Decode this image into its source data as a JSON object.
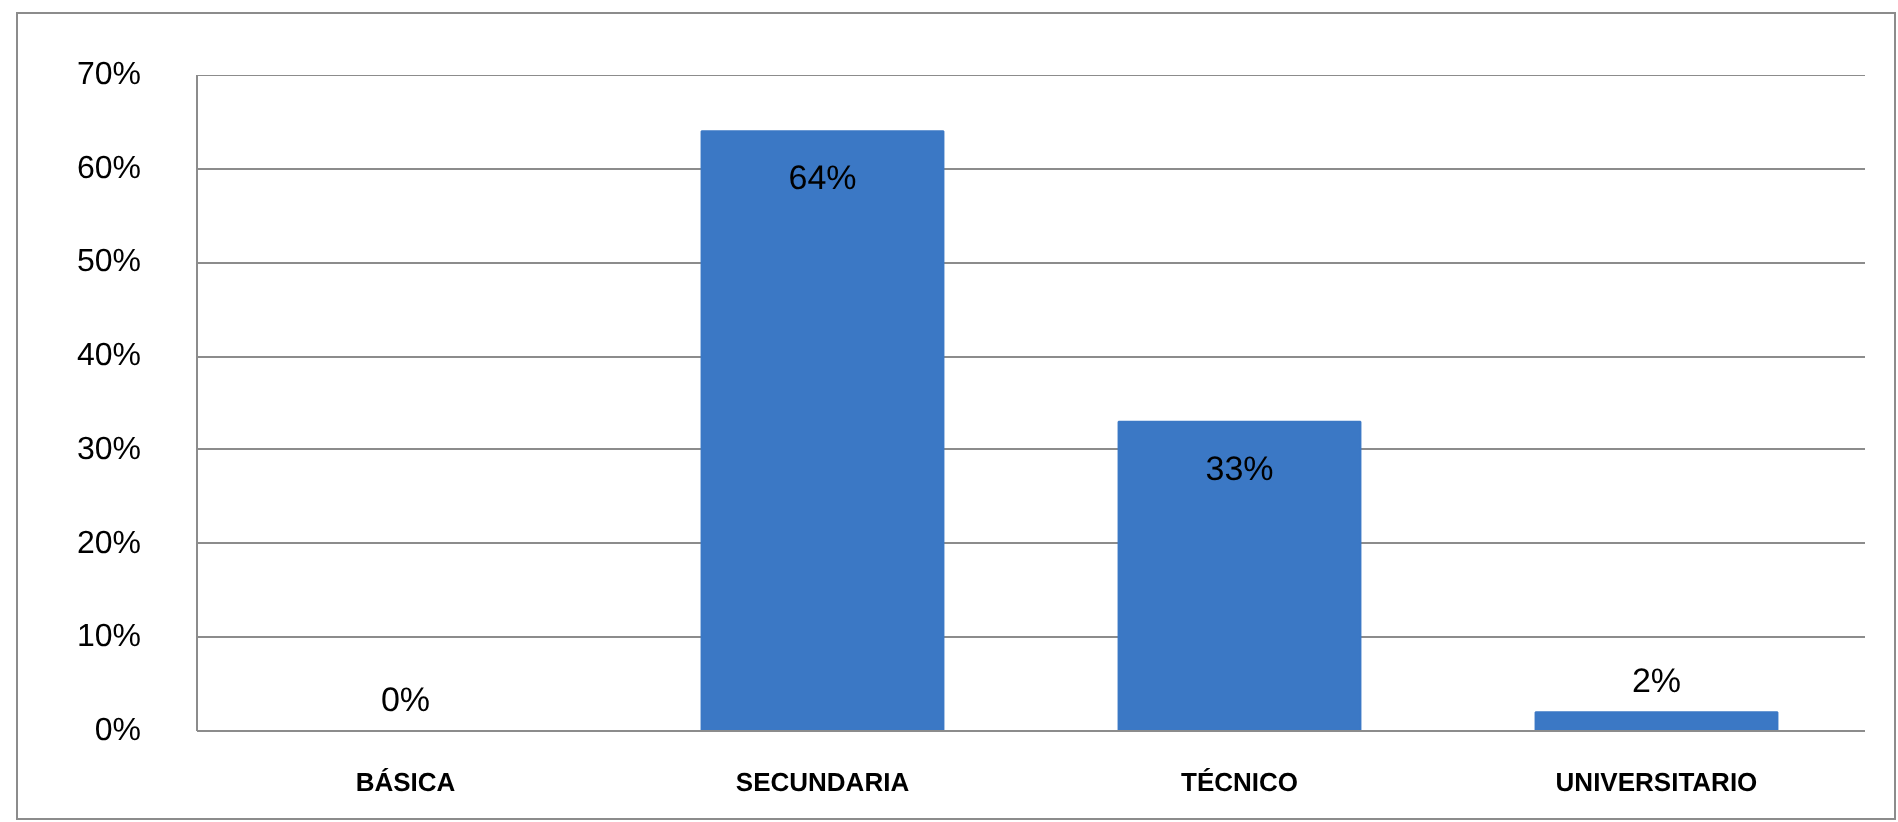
{
  "chart_data": {
    "type": "bar",
    "categories": [
      "BÁSICA",
      "SECUNDARIA",
      "TÉCNICO",
      "UNIVERSITARIO"
    ],
    "values": [
      0,
      64,
      33,
      2
    ],
    "color": "#3b78c5",
    "value_labels": [
      "0%",
      "64%",
      "33%",
      "2%"
    ],
    "ylim": [
      0,
      70
    ],
    "yticks": [
      {
        "value": 0,
        "label": "0%"
      },
      {
        "value": 10,
        "label": "10%"
      },
      {
        "value": 20,
        "label": "20%"
      },
      {
        "value": 30,
        "label": "30%"
      },
      {
        "value": 40,
        "label": "40%"
      },
      {
        "value": 50,
        "label": "50%"
      },
      {
        "value": 60,
        "label": "60%"
      },
      {
        "value": 70,
        "label": "70%"
      }
    ],
    "grid": "y"
  }
}
